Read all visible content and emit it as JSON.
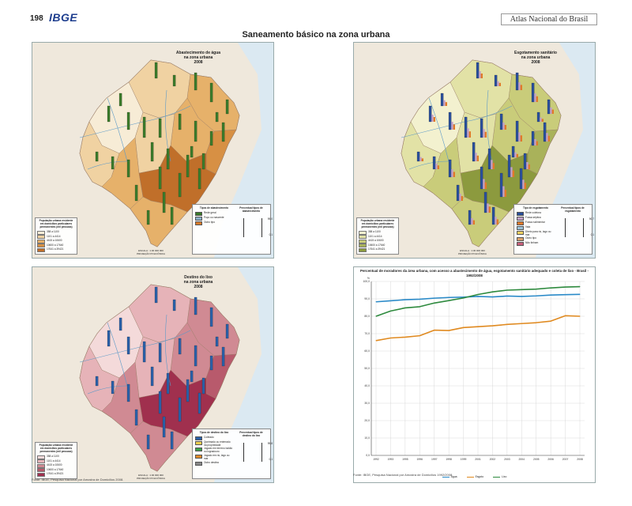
{
  "page": {
    "number": "198",
    "logo": "IBGE",
    "atlas": "Atlas Nacional do Brasil",
    "title": "Saneamento básico na zona urbana"
  },
  "maps": {
    "water": {
      "title": [
        "Abastecimento de água",
        "na zona urbana",
        "2008"
      ],
      "pop_legend_title": "População urbana residente em domicílios particulares permanentes (mil pessoas)",
      "pop_classes": [
        "358 a 1100",
        "1101 a 4414",
        "4415 a 10600",
        "10600 a 17640",
        "17641 a 39421"
      ],
      "pop_colors": [
        "#f7ecd6",
        "#f0d2a2",
        "#e6b16a",
        "#d79044",
        "#c06f2a"
      ],
      "types_title": "Tipos de abastecimento",
      "types": [
        "Rede geral",
        "Poço ou nascente",
        "Outro tipo"
      ],
      "type_colors": [
        "#3b7a2a",
        "#8ab0c8",
        "#d87a2a"
      ],
      "pct_title": "Percentual tipos de abastecimento",
      "pct_max": "99,0",
      "pct_min": "0,1",
      "scale": "ESCALA : 1:30 000 000",
      "projection": "PROJEÇÃO POLICÔNICA",
      "bar_color": "#3b7a2a"
    },
    "sewage": {
      "title": [
        "Esgotamento sanitário",
        "na zona urbana",
        "2008"
      ],
      "pop_legend_title": "População urbana residente em domicílios particulares permanentes (mil pessoas)",
      "pop_classes": [
        "358 a 1100",
        "1101 a 4414",
        "4415 a 10600",
        "10600 a 17640",
        "17641 a 39421"
      ],
      "pop_colors": [
        "#f3f1cf",
        "#e2e2a6",
        "#c9cc7a",
        "#a9b25a",
        "#8c9a3e"
      ],
      "types_title": "Tipo de esgotamento",
      "types": [
        "Rede coletora",
        "Fossa séptica",
        "Fossa rudimentar",
        "Vala",
        "Direto para rio, lago ou mar",
        "Outro tipo",
        "Não tinham"
      ],
      "type_colors": [
        "#2a4f9a",
        "#c2a0c8",
        "#e07a2a",
        "#9cc3d8",
        "#f0d060",
        "#d9a06a",
        "#c95f7a"
      ],
      "pct_title": "Percentual tipos de esgotamento",
      "pct_max": "90,7",
      "pct_min": "0,1",
      "scale": "ESCALA : 1:30 000 000",
      "projection": "PROJEÇÃO POLICÔNICA",
      "bar_color": "#2a4f9a"
    },
    "garbage": {
      "title": [
        "Destino do lixo",
        "na zona urbana",
        "2008"
      ],
      "pop_legend_title": "População urbana residente em domicílios particulares permanentes (mil pessoas)",
      "pop_classes": [
        "358 a 1100",
        "1101 a 4414",
        "4415 a 10600",
        "10600 a 17640",
        "17641 a 39421"
      ],
      "pop_colors": [
        "#f4dada",
        "#e6b3b8",
        "#d08a93",
        "#b85a6c",
        "#a0304e"
      ],
      "types_title": "Tipos de destino do lixo",
      "types": [
        "Coletado",
        "Queimado ou enterrado na propriedade",
        "Jogado em terreno baldio ou logradouro",
        "Jogado em rio, lago ou mar",
        "Outro destino"
      ],
      "type_colors": [
        "#2a5fa6",
        "#f0d050",
        "#3aa04a",
        "#e08a2a",
        "#888888"
      ],
      "pct_title": "Percentual tipos de destino do lixo",
      "pct_max": "99,8",
      "pct_min": "0,1",
      "scale": "ESCALA : 1:30 000 000",
      "projection": "PROJEÇÃO POLICÔNICA",
      "bar_color": "#2a5fa6"
    }
  },
  "sources": {
    "left": "Fonte: IBGE, Pesquisa Nacional por Amostra de Domicílios 2008.",
    "right": "Fonte: IBGE, Pesquisa Nacional por Amostra de Domicílios 1992/2008."
  },
  "chart_data": {
    "type": "line",
    "title": "Percentual de moradores da área urbana, com acesso a abastecimento de água, esgotamento sanitário adequado e coleta de lixo - Brasil - 1992/2008",
    "ylabel": "%",
    "ylim": [
      0,
      100
    ],
    "yticks": [
      "0,0",
      "10,0",
      "20,0",
      "30,0",
      "40,0",
      "50,0",
      "60,0",
      "70,0",
      "80,0",
      "90,0",
      "100,0"
    ],
    "ytick_values": [
      0,
      10,
      20,
      30,
      40,
      50,
      60,
      70,
      80,
      90,
      100
    ],
    "x": [
      "1992",
      "1993",
      "1995",
      "1996",
      "1997",
      "1998",
      "1999",
      "2001",
      "2002",
      "2003",
      "2004",
      "2005",
      "2006",
      "2007",
      "2008"
    ],
    "series": [
      {
        "name": "Água",
        "color": "#2a8ac8",
        "values": [
          88.3,
          88.9,
          89.5,
          89.8,
          90.4,
          90.8,
          91.0,
          91.4,
          91.1,
          91.6,
          91.4,
          91.7,
          92.2,
          92.4,
          92.6
        ]
      },
      {
        "name": "Esgoto",
        "color": "#e08a20",
        "values": [
          66.0,
          67.5,
          68.0,
          68.8,
          72.0,
          71.8,
          73.5,
          74.0,
          74.5,
          75.3,
          75.8,
          76.3,
          77.2,
          80.3,
          80.0
        ]
      },
      {
        "name": "Lixo",
        "color": "#2e8a3e",
        "values": [
          80.0,
          83.0,
          84.8,
          85.5,
          87.6,
          89.0,
          90.5,
          92.5,
          94.0,
          95.0,
          95.3,
          95.6,
          96.3,
          96.8,
          97.0
        ]
      }
    ],
    "grid": true,
    "legend": "bottom"
  }
}
